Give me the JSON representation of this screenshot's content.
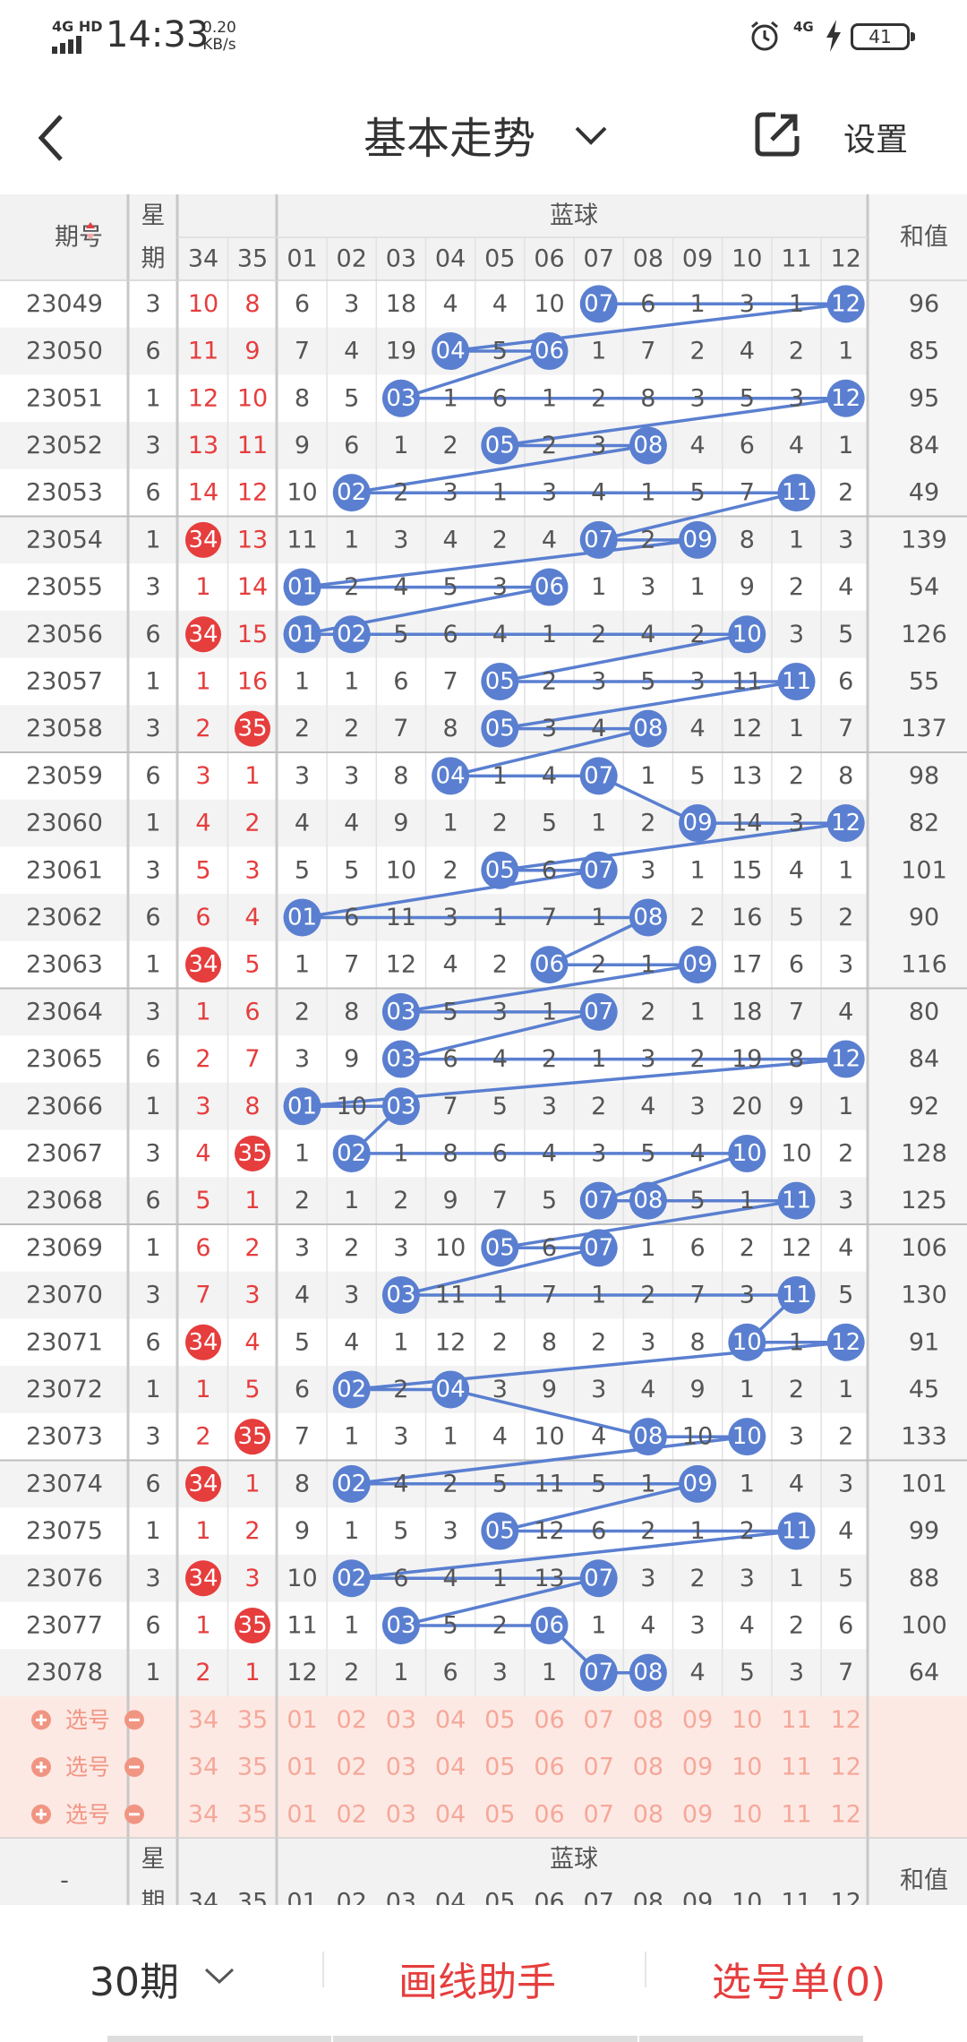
{
  "status_bar": {
    "signal_label": "4G HD",
    "time": "14:33",
    "speed_value": "0.20",
    "speed_unit": "KB/s",
    "network": "4G",
    "battery": "41",
    "icons": [
      "signal-icon",
      "alarm-icon",
      "charging-icon",
      "battery-icon"
    ]
  },
  "header": {
    "title": "基本走势",
    "settings_label": "设置",
    "icons": [
      "back-icon",
      "chevron-down-icon",
      "share-icon"
    ]
  },
  "table": {
    "col_headers": {
      "issue": "期号",
      "weekday_top": "星",
      "weekday_bottom": "期",
      "blue_group": "蓝球",
      "sum": "和值"
    },
    "back_cols": [
      "34",
      "35"
    ],
    "blue_cols": [
      "01",
      "02",
      "03",
      "04",
      "05",
      "06",
      "07",
      "08",
      "09",
      "10",
      "11",
      "12"
    ],
    "rows": [
      {
        "issue": "23049",
        "week": "3",
        "c34": "10",
        "c35": "8",
        "blue": [
          "6",
          "3",
          "18",
          "4",
          "4",
          "10",
          "07",
          "6",
          "1",
          "3",
          "1",
          "12"
        ],
        "sum": "96"
      },
      {
        "issue": "23050",
        "week": "6",
        "c34": "11",
        "c35": "9",
        "blue": [
          "7",
          "4",
          "19",
          "04",
          "5",
          "06",
          "1",
          "7",
          "2",
          "4",
          "2",
          "1"
        ],
        "sum": "85"
      },
      {
        "issue": "23051",
        "week": "1",
        "c34": "12",
        "c35": "10",
        "blue": [
          "8",
          "5",
          "03",
          "1",
          "6",
          "1",
          "2",
          "8",
          "3",
          "5",
          "3",
          "12"
        ],
        "sum": "95"
      },
      {
        "issue": "23052",
        "week": "3",
        "c34": "13",
        "c35": "11",
        "blue": [
          "9",
          "6",
          "1",
          "2",
          "05",
          "2",
          "3",
          "08",
          "4",
          "6",
          "4",
          "1"
        ],
        "sum": "84"
      },
      {
        "issue": "23053",
        "week": "6",
        "c34": "14",
        "c35": "12",
        "blue": [
          "10",
          "02",
          "2",
          "3",
          "1",
          "3",
          "4",
          "1",
          "5",
          "7",
          "11",
          "2"
        ],
        "sum": "49"
      },
      {
        "issue": "23054",
        "week": "1",
        "c34": "34",
        "c35": "13",
        "blue": [
          "11",
          "1",
          "3",
          "4",
          "2",
          "4",
          "07",
          "2",
          "09",
          "8",
          "1",
          "3"
        ],
        "sum": "139"
      },
      {
        "issue": "23055",
        "week": "3",
        "c34": "1",
        "c35": "14",
        "blue": [
          "01",
          "2",
          "4",
          "5",
          "3",
          "06",
          "1",
          "3",
          "1",
          "9",
          "2",
          "4"
        ],
        "sum": "54"
      },
      {
        "issue": "23056",
        "week": "6",
        "c34": "34",
        "c35": "15",
        "blue": [
          "01",
          "02",
          "5",
          "6",
          "4",
          "1",
          "2",
          "4",
          "2",
          "10",
          "3",
          "5"
        ],
        "sum": "126"
      },
      {
        "issue": "23057",
        "week": "1",
        "c34": "1",
        "c35": "16",
        "blue": [
          "1",
          "1",
          "6",
          "7",
          "05",
          "2",
          "3",
          "5",
          "3",
          "11",
          "11",
          "6"
        ],
        "sum": "55"
      },
      {
        "issue": "23058",
        "week": "3",
        "c34": "2",
        "c35": "35",
        "blue": [
          "2",
          "2",
          "7",
          "8",
          "05",
          "3",
          "4",
          "08",
          "4",
          "12",
          "1",
          "7"
        ],
        "sum": "137"
      },
      {
        "issue": "23059",
        "week": "6",
        "c34": "3",
        "c35": "1",
        "blue": [
          "3",
          "3",
          "8",
          "04",
          "1",
          "4",
          "07",
          "1",
          "5",
          "13",
          "2",
          "8"
        ],
        "sum": "98"
      },
      {
        "issue": "23060",
        "week": "1",
        "c34": "4",
        "c35": "2",
        "blue": [
          "4",
          "4",
          "9",
          "1",
          "2",
          "5",
          "1",
          "2",
          "09",
          "14",
          "3",
          "12"
        ],
        "sum": "82"
      },
      {
        "issue": "23061",
        "week": "3",
        "c34": "5",
        "c35": "3",
        "blue": [
          "5",
          "5",
          "10",
          "2",
          "05",
          "6",
          "07",
          "3",
          "1",
          "15",
          "4",
          "1"
        ],
        "sum": "101"
      },
      {
        "issue": "23062",
        "week": "6",
        "c34": "6",
        "c35": "4",
        "blue": [
          "01",
          "6",
          "11",
          "3",
          "1",
          "7",
          "1",
          "08",
          "2",
          "16",
          "5",
          "2"
        ],
        "sum": "90"
      },
      {
        "issue": "23063",
        "week": "1",
        "c34": "34",
        "c35": "5",
        "blue": [
          "1",
          "7",
          "12",
          "4",
          "2",
          "06",
          "2",
          "1",
          "09",
          "17",
          "6",
          "3"
        ],
        "sum": "116"
      },
      {
        "issue": "23064",
        "week": "3",
        "c34": "1",
        "c35": "6",
        "blue": [
          "2",
          "8",
          "03",
          "5",
          "3",
          "1",
          "07",
          "2",
          "1",
          "18",
          "7",
          "4"
        ],
        "sum": "80"
      },
      {
        "issue": "23065",
        "week": "6",
        "c34": "2",
        "c35": "7",
        "blue": [
          "3",
          "9",
          "03",
          "6",
          "4",
          "2",
          "1",
          "3",
          "2",
          "19",
          "8",
          "12"
        ],
        "sum": "84"
      },
      {
        "issue": "23066",
        "week": "1",
        "c34": "3",
        "c35": "8",
        "blue": [
          "01",
          "10",
          "03",
          "7",
          "5",
          "3",
          "2",
          "4",
          "3",
          "20",
          "9",
          "1"
        ],
        "sum": "92"
      },
      {
        "issue": "23067",
        "week": "3",
        "c34": "4",
        "c35": "35",
        "blue": [
          "1",
          "02",
          "1",
          "8",
          "6",
          "4",
          "3",
          "5",
          "4",
          "10",
          "10",
          "2"
        ],
        "sum": "128"
      },
      {
        "issue": "23068",
        "week": "6",
        "c34": "5",
        "c35": "1",
        "blue": [
          "2",
          "1",
          "2",
          "9",
          "7",
          "5",
          "07",
          "08",
          "5",
          "1",
          "11",
          "3"
        ],
        "sum": "125"
      },
      {
        "issue": "23069",
        "week": "1",
        "c34": "6",
        "c35": "2",
        "blue": [
          "3",
          "2",
          "3",
          "10",
          "05",
          "6",
          "07",
          "1",
          "6",
          "2",
          "12",
          "4"
        ],
        "sum": "106"
      },
      {
        "issue": "23070",
        "week": "3",
        "c34": "7",
        "c35": "3",
        "blue": [
          "4",
          "3",
          "03",
          "11",
          "1",
          "7",
          "1",
          "2",
          "7",
          "3",
          "11",
          "5"
        ],
        "sum": "130"
      },
      {
        "issue": "23071",
        "week": "6",
        "c34": "34",
        "c35": "4",
        "blue": [
          "5",
          "4",
          "1",
          "12",
          "2",
          "8",
          "2",
          "3",
          "8",
          "10",
          "1",
          "12"
        ],
        "sum": "91"
      },
      {
        "issue": "23072",
        "week": "1",
        "c34": "1",
        "c35": "5",
        "blue": [
          "6",
          "02",
          "2",
          "04",
          "3",
          "9",
          "3",
          "4",
          "9",
          "1",
          "2",
          "1"
        ],
        "sum": "45"
      },
      {
        "issue": "23073",
        "week": "3",
        "c34": "2",
        "c35": "35",
        "blue": [
          "7",
          "1",
          "3",
          "1",
          "4",
          "10",
          "4",
          "08",
          "10",
          "10",
          "3",
          "2"
        ],
        "sum": "133"
      },
      {
        "issue": "23074",
        "week": "6",
        "c34": "34",
        "c35": "1",
        "blue": [
          "8",
          "02",
          "4",
          "2",
          "5",
          "11",
          "5",
          "1",
          "09",
          "1",
          "4",
          "3"
        ],
        "sum": "101"
      },
      {
        "issue": "23075",
        "week": "1",
        "c34": "1",
        "c35": "2",
        "blue": [
          "9",
          "1",
          "5",
          "3",
          "05",
          "12",
          "6",
          "2",
          "1",
          "2",
          "11",
          "4"
        ],
        "sum": "99"
      },
      {
        "issue": "23076",
        "week": "3",
        "c34": "34",
        "c35": "3",
        "blue": [
          "10",
          "02",
          "6",
          "4",
          "1",
          "13",
          "07",
          "3",
          "2",
          "3",
          "1",
          "5"
        ],
        "sum": "88"
      },
      {
        "issue": "23077",
        "week": "6",
        "c34": "1",
        "c35": "35",
        "blue": [
          "11",
          "1",
          "03",
          "5",
          "2",
          "06",
          "1",
          "4",
          "3",
          "4",
          "2",
          "6"
        ],
        "sum": "100"
      },
      {
        "issue": "23078",
        "week": "1",
        "c34": "2",
        "c35": "1",
        "blue": [
          "12",
          "2",
          "1",
          "6",
          "3",
          "1",
          "07",
          "08",
          "4",
          "5",
          "3",
          "7"
        ],
        "sum": "64"
      }
    ],
    "pick_row_label": "选号",
    "pick_rows": 3,
    "footer_issue_placeholder": "-",
    "colors": {
      "red_ball": "#e63d3d",
      "blue_ball": "#5a7fd0",
      "line": "#5a7fd0",
      "row_alt": "#f3f3f3",
      "pick_bg": "#fde9e4",
      "pick_text": "#f5a89a",
      "sum_col_bg": "#f5f5f5"
    }
  },
  "bottom": {
    "period_label": "30期",
    "draw_helper": "画线助手",
    "pick_list": "选号单(0)",
    "icons": [
      "chevron-down-icon"
    ]
  }
}
